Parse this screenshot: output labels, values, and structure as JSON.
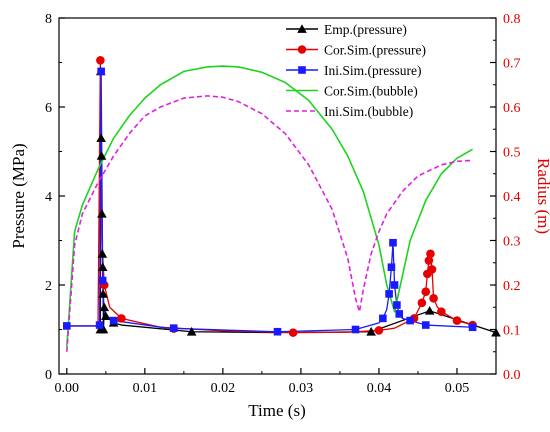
{
  "chart_data": {
    "type": "line",
    "title": "",
    "xlabel": "Time (s)",
    "ylabel_left": "Pressure (MPa)",
    "ylabel_right": "Radius (m)",
    "xlim": [
      -0.001,
      0.055
    ],
    "ylim_left": [
      0,
      8
    ],
    "ylim_right": [
      0,
      0.8
    ],
    "x_ticks": [
      "0.00",
      "0.01",
      "0.02",
      "0.03",
      "0.04",
      "0.05"
    ],
    "y_left_ticks": [
      "0",
      "2",
      "4",
      "6",
      "8"
    ],
    "y_right_ticks": [
      "0.0",
      "0.1",
      "0.2",
      "0.3",
      "0.4",
      "0.5",
      "0.6",
      "0.7",
      "0.8"
    ],
    "legend_position": "top-right",
    "colors": {
      "left_axis": "#000000",
      "right_axis": "#e00000"
    },
    "series": [
      {
        "name": "Emp.(pressure)",
        "axis": "left",
        "color": "#000000",
        "marker": "triangle",
        "dash": false,
        "x": [
          0.0043,
          0.00435,
          0.0044,
          0.00445,
          0.0045,
          0.00455,
          0.0046,
          0.00465,
          0.0047,
          0.0048,
          0.005,
          0.006,
          0.007,
          0.016,
          0.027,
          0.039,
          0.0465,
          0.055
        ],
        "y": [
          1.0,
          6.8,
          5.3,
          4.9,
          3.6,
          2.7,
          2.4,
          1.8,
          1.0,
          1.5,
          1.3,
          1.15,
          1.1,
          0.95,
          0.93,
          0.95,
          1.42,
          0.93
        ],
        "marker_x": [
          0.0043,
          0.00435,
          0.0044,
          0.00445,
          0.0045,
          0.00455,
          0.0046,
          0.00465,
          0.0047,
          0.0048,
          0.005,
          0.006,
          0.016,
          0.039,
          0.0465,
          0.055
        ],
        "marker_y": [
          1.0,
          6.8,
          5.3,
          4.9,
          3.6,
          2.7,
          2.4,
          1.8,
          1.0,
          1.5,
          1.3,
          1.15,
          0.95,
          0.95,
          1.42,
          0.93
        ]
      },
      {
        "name": "Cor.Sim.(pressure)",
        "axis": "left",
        "color": "#e60000",
        "marker": "circle",
        "dash": false,
        "x": [
          0.0,
          0.004,
          0.0043,
          0.0045,
          0.0048,
          0.0055,
          0.007,
          0.012,
          0.02,
          0.029,
          0.036,
          0.04,
          0.042,
          0.0445,
          0.0455,
          0.046,
          0.0462,
          0.0464,
          0.0466,
          0.0468,
          0.047,
          0.0475,
          0.0485,
          0.05,
          0.052
        ],
        "y": [
          1.08,
          1.08,
          7.05,
          3.0,
          2.0,
          1.5,
          1.25,
          1.05,
          0.97,
          0.93,
          0.94,
          0.98,
          1.03,
          1.25,
          1.6,
          1.85,
          2.25,
          2.55,
          2.7,
          2.35,
          1.7,
          1.5,
          1.35,
          1.2,
          1.1
        ],
        "marker_x": [
          0.0043,
          0.0048,
          0.007,
          0.0137,
          0.029,
          0.04,
          0.0445,
          0.0455,
          0.046,
          0.0462,
          0.0464,
          0.0466,
          0.0468,
          0.047,
          0.048,
          0.05,
          0.052
        ],
        "marker_y": [
          7.05,
          2.0,
          1.25,
          1.02,
          0.93,
          0.98,
          1.25,
          1.6,
          1.85,
          2.25,
          2.55,
          2.7,
          2.35,
          1.7,
          1.4,
          1.2,
          1.1
        ]
      },
      {
        "name": "Ini.Sim.(pressure)",
        "axis": "left",
        "color": "#1a1aff",
        "marker": "square",
        "dash": false,
        "x": [
          0.0,
          0.004,
          0.0042,
          0.0044,
          0.0046,
          0.0048,
          0.006,
          0.013,
          0.027,
          0.037,
          0.04,
          0.0405,
          0.041,
          0.0413,
          0.0416,
          0.0418,
          0.042,
          0.0423,
          0.0426,
          0.043,
          0.044,
          0.046,
          0.052
        ],
        "y": [
          1.08,
          1.08,
          1.1,
          6.8,
          2.1,
          1.35,
          1.2,
          1.03,
          0.95,
          1.0,
          1.15,
          1.25,
          1.45,
          1.8,
          2.4,
          2.95,
          2.0,
          1.55,
          1.35,
          1.25,
          1.2,
          1.1,
          1.05
        ],
        "marker_x": [
          0.0,
          0.0042,
          0.0044,
          0.0046,
          0.006,
          0.0137,
          0.027,
          0.037,
          0.0405,
          0.0413,
          0.0416,
          0.0418,
          0.042,
          0.0423,
          0.0426,
          0.044,
          0.046,
          0.052
        ],
        "marker_y": [
          1.08,
          1.1,
          6.8,
          2.1,
          1.2,
          1.03,
          0.95,
          1.0,
          1.25,
          1.8,
          2.4,
          2.95,
          2.0,
          1.55,
          1.35,
          1.2,
          1.1,
          1.05
        ]
      },
      {
        "name": "Cor.Sim.(bubble)",
        "axis": "right",
        "color": "#1fd41f",
        "marker": "none",
        "dash": false,
        "x": [
          0.0,
          0.001,
          0.002,
          0.004,
          0.006,
          0.008,
          0.01,
          0.012,
          0.015,
          0.018,
          0.02,
          0.022,
          0.025,
          0.028,
          0.031,
          0.034,
          0.036,
          0.038,
          0.04,
          0.041,
          0.0415,
          0.042,
          0.043,
          0.044,
          0.046,
          0.048,
          0.05,
          0.052
        ],
        "y": [
          0.06,
          0.32,
          0.38,
          0.46,
          0.53,
          0.58,
          0.62,
          0.65,
          0.68,
          0.69,
          0.692,
          0.69,
          0.678,
          0.655,
          0.615,
          0.55,
          0.49,
          0.41,
          0.29,
          0.2,
          0.17,
          0.14,
          0.22,
          0.3,
          0.39,
          0.45,
          0.485,
          0.505
        ]
      },
      {
        "name": "Ini.Sim.(bubble)",
        "axis": "right",
        "color": "#e020e0",
        "marker": "none",
        "dash": true,
        "x": [
          0.0,
          0.001,
          0.002,
          0.004,
          0.006,
          0.008,
          0.01,
          0.012,
          0.015,
          0.018,
          0.02,
          0.022,
          0.025,
          0.028,
          0.031,
          0.034,
          0.036,
          0.037,
          0.0375,
          0.038,
          0.039,
          0.04,
          0.041,
          0.043,
          0.045,
          0.048,
          0.05,
          0.052
        ],
        "y": [
          0.05,
          0.29,
          0.36,
          0.43,
          0.49,
          0.54,
          0.58,
          0.6,
          0.62,
          0.625,
          0.622,
          0.612,
          0.585,
          0.54,
          0.47,
          0.37,
          0.26,
          0.17,
          0.14,
          0.19,
          0.27,
          0.32,
          0.36,
          0.41,
          0.445,
          0.47,
          0.478,
          0.48
        ]
      }
    ]
  }
}
